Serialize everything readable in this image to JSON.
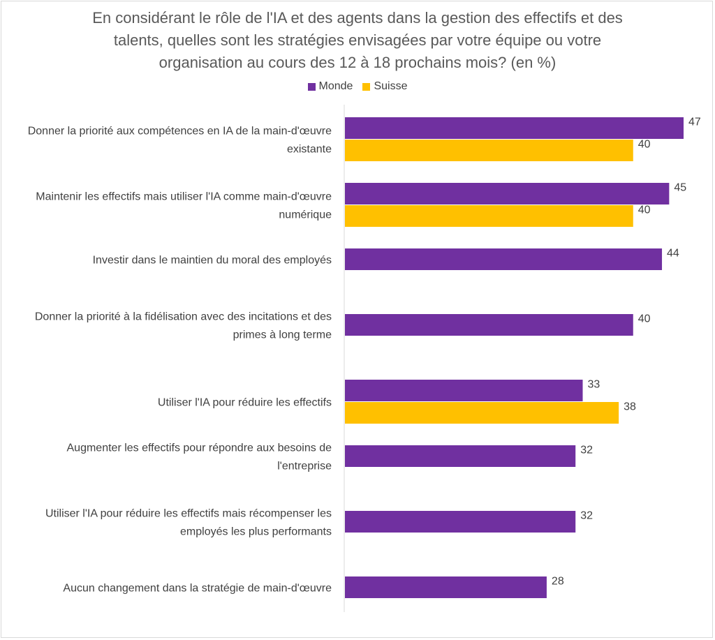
{
  "chart_data": {
    "type": "bar",
    "orientation": "horizontal",
    "title": "En considérant le rôle de l'IA et des agents dans la gestion des effectifs et des\ntalents, quelles sont les stratégies envisagées par votre équipe ou votre\norganisation au cours des 12 à 18 prochains mois? (en %)",
    "legend_position": "top",
    "grid": false,
    "xlim": [
      0,
      50
    ],
    "categories": [
      [
        "Donner la priorité aux compétences en IA de la main-d'œuvre",
        "existante"
      ],
      [
        "Maintenir les effectifs mais utiliser l'IA comme main-d'œuvre",
        "numérique"
      ],
      [
        "Investir dans le maintien du moral des employés"
      ],
      [
        "Donner la priorité à la fidélisation avec des incitations et des",
        "primes à long terme"
      ],
      [
        "Utiliser l'IA pour réduire les effectifs"
      ],
      [
        "Augmenter les effectifs pour répondre aux besoins de",
        "l'entreprise"
      ],
      [
        "Utiliser l'IA pour réduire les effectifs mais récompenser les",
        "employés les plus performants"
      ],
      [
        "Aucun changement dans la stratégie de main-d'œuvre"
      ]
    ],
    "series": [
      {
        "name": "Monde",
        "color": "#7030a0",
        "values": [
          47,
          45,
          44,
          40,
          33,
          32,
          32,
          28
        ]
      },
      {
        "name": "Suisse",
        "color": "#ffc000",
        "values": [
          40,
          40,
          null,
          null,
          38,
          null,
          null,
          null
        ]
      }
    ]
  }
}
